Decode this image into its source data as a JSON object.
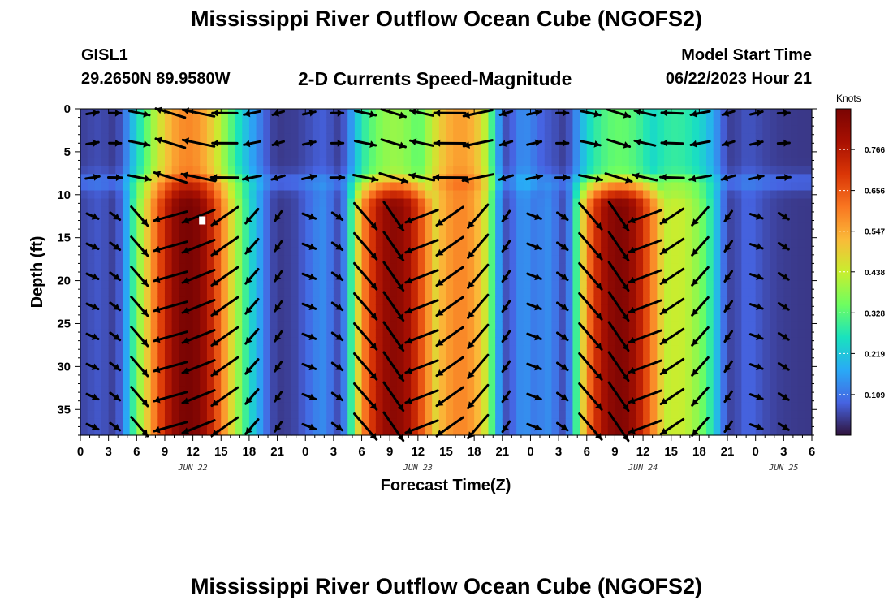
{
  "header": {
    "title": "Mississippi River Outflow Ocean Cube (NGOFS2)",
    "station_id": "GISL1",
    "station_coords": "29.2650N  89.9580W",
    "subtitle": "2-D Currents Speed-Magnitude",
    "model_start_label": "Model Start Time",
    "model_start_value": "06/22/2023 Hour 21"
  },
  "footer": {
    "title": "Mississippi River Outflow Ocean Cube (NGOFS2)"
  },
  "chart_data": {
    "type": "heatmap",
    "title": "2-D Currents Speed-Magnitude",
    "xlabel": "Forecast Time(Z)",
    "ylabel": "Depth (ft)",
    "x_range_hours_from_jun22_00z": [
      0,
      78
    ],
    "x_tick_labels": [
      "0",
      "3",
      "6",
      "9",
      "12",
      "15",
      "18",
      "21",
      "0",
      "3",
      "6",
      "9",
      "12",
      "15",
      "18",
      "21",
      "0",
      "3",
      "6",
      "9",
      "12",
      "15",
      "18",
      "21",
      "0",
      "3",
      "6"
    ],
    "x_date_labels": [
      {
        "label": "JUN 22",
        "hour": 12
      },
      {
        "label": "JUN 23",
        "hour": 36
      },
      {
        "label": "JUN 24",
        "hour": 60
      },
      {
        "label": "JUN 25",
        "hour": 75
      }
    ],
    "y_range_ft": [
      0,
      38
    ],
    "y_inverted": true,
    "y_tick_labels": [
      "0",
      "5",
      "10",
      "15",
      "20",
      "25",
      "30",
      "35"
    ],
    "colorbar": {
      "label": "Knots",
      "range": [
        0,
        0.875
      ],
      "tick_labels": [
        "0.109",
        "0.219",
        "0.328",
        "0.438",
        "0.547",
        "0.656",
        "0.766"
      ],
      "colormap": "turbo"
    },
    "surface_layer_depth_ft": 8.5,
    "slack_bands_hours": [
      3.5,
      21.3,
      27.5,
      45.5,
      51.5,
      69.5
    ],
    "speed_peaks": [
      {
        "hour": 11.5,
        "surface_knots": 0.55,
        "subsurface_knots": 0.84
      },
      {
        "hour": 33.5,
        "surface_knots": 0.35,
        "subsurface_knots": 0.8
      },
      {
        "hour": 40.5,
        "surface_knots": 0.52,
        "subsurface_knots": 0.55
      },
      {
        "hour": 57.5,
        "surface_knots": 0.3,
        "subsurface_knots": 0.82
      },
      {
        "hour": 63.5,
        "surface_knots": 0.25,
        "subsurface_knots": 0.4
      }
    ],
    "sample_marker": {
      "hour": 13,
      "depth_ft": 13
    },
    "vector_columns_hours": [
      1.3,
      3.7,
      6.3,
      9.6,
      12.6,
      15.4,
      18.3,
      21.1,
      24.4,
      27.4,
      30.4,
      33.4,
      36.4,
      39.4,
      42.4,
      45.4,
      48.4,
      51.4,
      54.4,
      57.4,
      60.2,
      63.1,
      66.1,
      69.1,
      72.1,
      75.0
    ],
    "vector_rows_ft": [
      0.5,
      4,
      8,
      12.5,
      16,
      19.5,
      23,
      26.5,
      30,
      33.5,
      37
    ],
    "arrow_heads": "one arrowhead per column/row grid cell, direction following the tidal phase"
  }
}
